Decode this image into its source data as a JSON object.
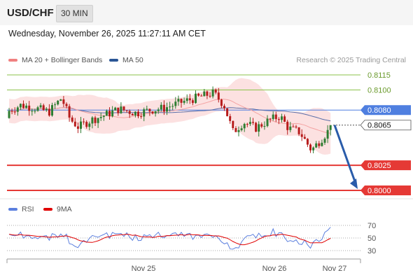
{
  "header": {
    "symbol": "USD/CHF",
    "timeframe": "30 MIN"
  },
  "timestamp": "Wednesday, November 26, 2025 11:27:11 AM CET",
  "legend": [
    {
      "label": "MA 20 + Bollinger Bands",
      "color": "#f08080"
    },
    {
      "label": "MA 50",
      "color": "#2a5595"
    }
  ],
  "rsi_legend": [
    {
      "label": "RSI",
      "color": "#5b7fde"
    },
    {
      "label": "9MA",
      "color": "#e00000"
    }
  ],
  "credit": "Research © 2025 Trading Central",
  "colors": {
    "bull": "#2e7d32",
    "bear": "#b71c1c",
    "rsi": "#5b7fde",
    "rsi_ma": "#e00000",
    "bands": "#fbdcdc",
    "ma50": "#5a6ea8"
  },
  "chart_data": {
    "type": "candlestick",
    "ylim": [
      0.7965,
      0.814
    ],
    "levels": [
      {
        "value": 0.8115,
        "label": "0.8115",
        "color": "#8bc34a",
        "kind": "resistance"
      },
      {
        "value": 0.81,
        "label": "0.8100",
        "color": "#8bc34a",
        "kind": "resistance"
      },
      {
        "value": 0.808,
        "label": "0.8080",
        "color": "#4f7fe0",
        "kind": "pivot"
      },
      {
        "value": 0.8065,
        "label": "0.8065",
        "color": "#222222",
        "kind": "last"
      },
      {
        "value": 0.8025,
        "label": "0.8025",
        "color": "#e53935",
        "kind": "support"
      },
      {
        "value": 0.8,
        "label": "0.8000",
        "color": "#e53935",
        "kind": "support"
      }
    ],
    "xaxis_labels": [
      "Nov 25",
      "Nov 26",
      "Nov 27"
    ],
    "rsi_levels": [
      "70",
      "50",
      "30"
    ],
    "projection": {
      "from": 0.8065,
      "to": 0.8
    }
  }
}
